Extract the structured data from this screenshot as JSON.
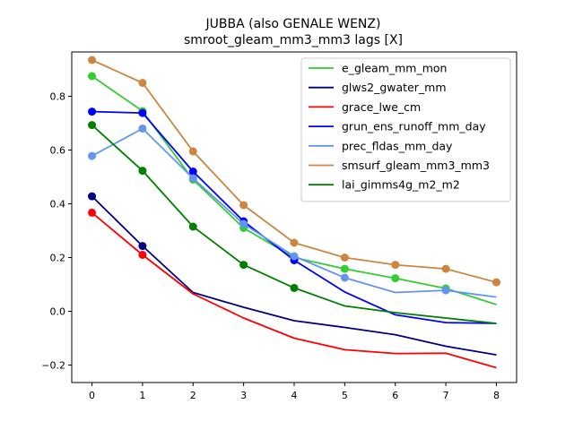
{
  "chart_data": {
    "type": "line",
    "title": "JUBBA (also GENALE WENZ)",
    "subtitle": "smroot_gleam_mm3_mm3 lags [X]",
    "xlabel": "",
    "ylabel": "",
    "x": [
      0,
      1,
      2,
      3,
      4,
      5,
      6,
      7,
      8
    ],
    "xlim": [
      -0.4,
      8.4
    ],
    "ylim": [
      -0.265,
      0.965
    ],
    "xticks": [
      "0",
      "1",
      "2",
      "3",
      "4",
      "5",
      "6",
      "7",
      "8"
    ],
    "yticks": [
      "−0.2",
      "0.0",
      "0.2",
      "0.4",
      "0.6",
      "0.8"
    ],
    "ytick_values": [
      -0.2,
      0.0,
      0.2,
      0.4,
      0.6,
      0.8
    ],
    "grid": false,
    "legend_position": "top-right",
    "series": [
      {
        "name": "e_gleam_mm_mon",
        "color": "#32cd32",
        "values": [
          0.875,
          0.745,
          0.49,
          0.31,
          0.2,
          0.158,
          0.123,
          0.085,
          0.025
        ],
        "markers": [
          true,
          true,
          true,
          true,
          true,
          true,
          true,
          true,
          false
        ]
      },
      {
        "name": "glws2_gwater_mm",
        "color": "#000080",
        "values": [
          0.428,
          0.243,
          0.07,
          0.015,
          -0.035,
          -0.06,
          -0.087,
          -0.13,
          -0.162
        ],
        "markers": [
          true,
          true,
          false,
          false,
          false,
          false,
          false,
          false,
          false
        ]
      },
      {
        "name": "grace_lwe_cm",
        "color": "#ff0000",
        "values": [
          0.367,
          0.21,
          0.065,
          -0.025,
          -0.1,
          -0.143,
          -0.157,
          -0.156,
          -0.21
        ],
        "markers": [
          true,
          true,
          false,
          false,
          false,
          false,
          false,
          false,
          false
        ]
      },
      {
        "name": "grun_ens_runoff_mm_day",
        "color": "#0000ff",
        "values": [
          0.743,
          0.738,
          0.52,
          0.335,
          0.19,
          0.072,
          -0.013,
          -0.042,
          -0.045
        ],
        "markers": [
          true,
          true,
          true,
          true,
          true,
          false,
          false,
          false,
          false
        ]
      },
      {
        "name": "prec_fldas_mm_day",
        "color": "#6495ed",
        "values": [
          0.578,
          0.68,
          0.495,
          0.325,
          0.205,
          0.125,
          0.07,
          0.078,
          0.053
        ],
        "markers": [
          true,
          true,
          true,
          true,
          true,
          true,
          false,
          true,
          false
        ]
      },
      {
        "name": "smsurf_gleam_mm3_mm3",
        "color": "#cd853f",
        "values": [
          0.935,
          0.85,
          0.595,
          0.395,
          0.255,
          0.2,
          0.173,
          0.158,
          0.108
        ],
        "markers": [
          true,
          true,
          true,
          true,
          true,
          true,
          true,
          true,
          true
        ]
      },
      {
        "name": "lai_gimms4g_m2_m2",
        "color": "#008000",
        "values": [
          0.693,
          0.523,
          0.315,
          0.173,
          0.087,
          0.02,
          -0.005,
          -0.025,
          -0.045
        ],
        "markers": [
          true,
          true,
          true,
          true,
          true,
          false,
          false,
          false,
          false
        ]
      }
    ]
  }
}
